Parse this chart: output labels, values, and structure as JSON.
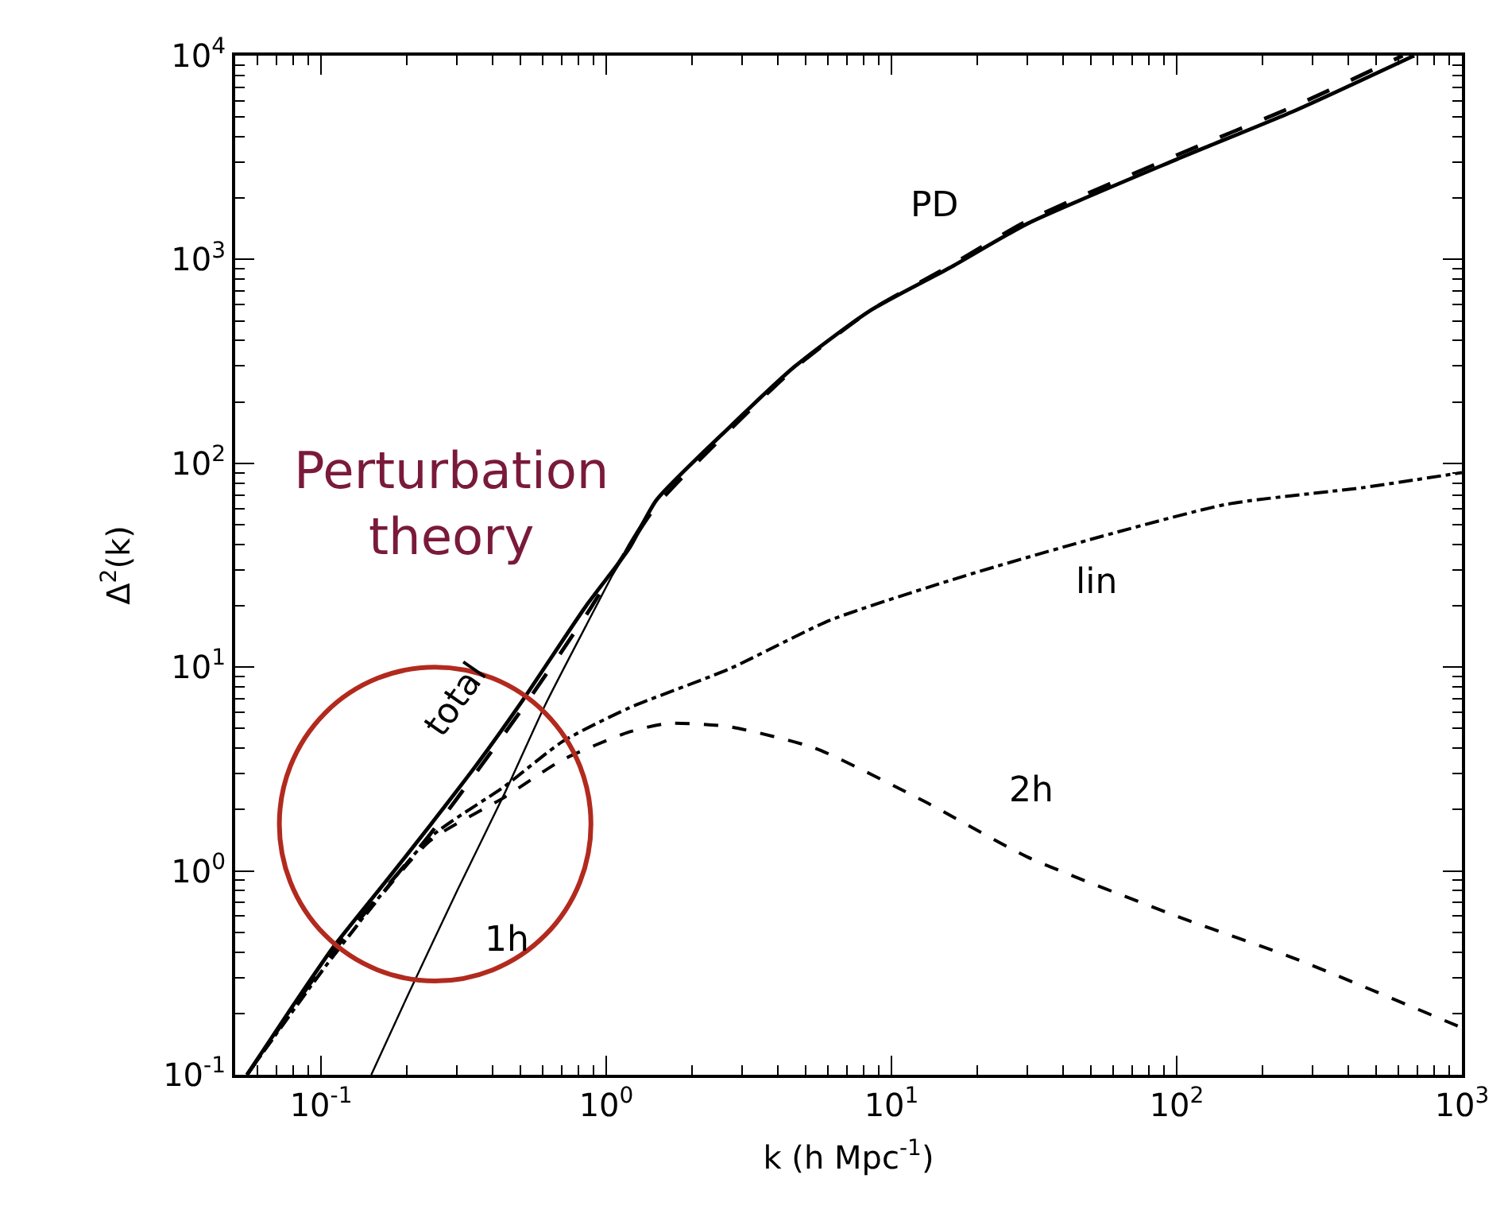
{
  "chart_data": {
    "type": "line",
    "xlabel": "k (h Mpc$^{-1}$)",
    "ylabel": "Δ$^{2}$(k)",
    "log": "xy",
    "legend": false,
    "marker": "none",
    "xlim": [
      0.05,
      1000
    ],
    "ylim": [
      0.1,
      10000
    ],
    "xticks": [
      {
        "value": 0.1,
        "label": "10$^{-1}$"
      },
      {
        "value": 1,
        "label": "10$^{0}$"
      },
      {
        "value": 10,
        "label": "10$^{1}$"
      },
      {
        "value": 100,
        "label": "10$^{2}$"
      },
      {
        "value": 1000,
        "label": "10$^{3}$"
      }
    ],
    "yticks": [
      {
        "value": 0.1,
        "label": "10$^{-1}$"
      },
      {
        "value": 1,
        "label": "10$^{0}$"
      },
      {
        "value": 10,
        "label": "10$^{1}$"
      },
      {
        "value": 100,
        "label": "10$^{2}$"
      },
      {
        "value": 1000,
        "label": "10$^{3}$"
      },
      {
        "value": 10000,
        "label": "10$^{4}$"
      }
    ],
    "series": [
      {
        "name": "total",
        "color": "#000000",
        "line_style": "solid",
        "x": [
          0.055,
          0.08,
          0.11,
          0.17,
          0.24,
          0.35,
          0.51,
          0.85,
          1.2,
          1.5,
          2.7,
          4.6,
          8.4,
          16,
          30,
          100,
          262,
          680
        ],
        "values": [
          0.1,
          0.22,
          0.42,
          0.9,
          1.66,
          3.3,
          6.9,
          20,
          38,
          66,
          150,
          300,
          560,
          910,
          1500,
          3100,
          5400,
          10000
        ]
      },
      {
        "name": "PD",
        "color": "#000000",
        "line_style": "dashed",
        "x": [
          0.055,
          0.11,
          0.24,
          0.51,
          0.85,
          1.5,
          2.7,
          4.6,
          8.4,
          16,
          30,
          100,
          262,
          620
        ],
        "values": [
          0.1,
          0.4,
          1.5,
          6.3,
          18,
          62,
          145,
          295,
          560,
          930,
          1550,
          3250,
          5700,
          10000
        ]
      },
      {
        "name": "lin",
        "color": "#000000",
        "line_style": "dashdot",
        "x": [
          0.055,
          0.11,
          0.24,
          0.44,
          0.7,
          1.2,
          2.7,
          6.1,
          18,
          52,
          150,
          450,
          1000
        ],
        "values": [
          0.1,
          0.38,
          1.45,
          2.6,
          4.3,
          6.3,
          9.8,
          17,
          28,
          43,
          63,
          76,
          90
        ]
      },
      {
        "name": "2h",
        "color": "#000000",
        "line_style": "dotted",
        "x": [
          0.055,
          0.11,
          0.24,
          0.44,
          0.7,
          1.2,
          1.65,
          2.7,
          5.4,
          13,
          30,
          100,
          262,
          1000
        ],
        "values": [
          0.1,
          0.38,
          1.4,
          2.3,
          3.5,
          4.8,
          5.3,
          5.1,
          4.0,
          2.2,
          1.17,
          0.6,
          0.37,
          0.17
        ]
      },
      {
        "name": "1h",
        "color": "#000000",
        "line_style": "solid",
        "x": [
          0.15,
          0.2,
          0.3,
          0.44,
          0.61,
          0.85,
          1.2,
          1.5
        ],
        "values": [
          0.1,
          0.24,
          0.8,
          2.4,
          6.5,
          16,
          40,
          66
        ]
      }
    ],
    "annotations": [
      "Perturbation theory"
    ]
  }
}
